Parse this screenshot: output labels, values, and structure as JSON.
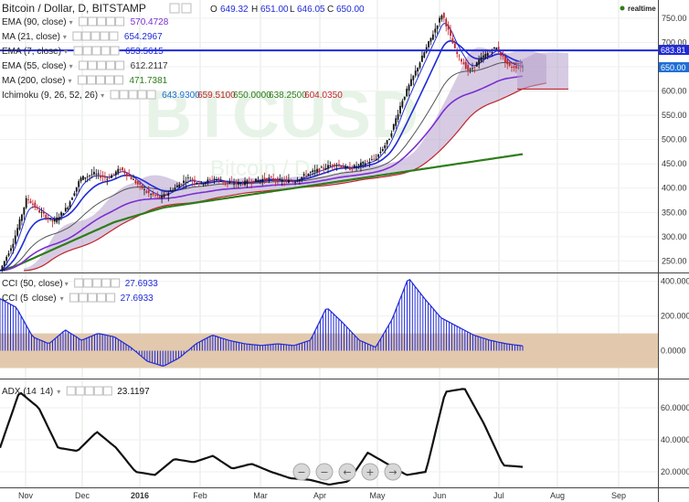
{
  "header": {
    "symbol": "Bitcoin / Dollar, D, BITSTAMP",
    "o_label": "O",
    "o_value": "649.32",
    "h_label": "H",
    "h_value": "651.00",
    "l_label": "L",
    "l_value": "646.05",
    "c_label": "C",
    "c_value": "650.00",
    "realtime": "realtime"
  },
  "watermark": {
    "big": "BTCUSD",
    "small": "Bitcoin / Dollar"
  },
  "indicators": [
    {
      "label": "EMA (90, close)",
      "value": "570.4728",
      "color": "#7b2fd0"
    },
    {
      "label": "MA (21, close)",
      "value": "654.2967",
      "color": "#1f2ad6"
    },
    {
      "label": "EMA (7, close)",
      "value": "653.5615",
      "color": "#1f2ad6"
    },
    {
      "label": "EMA (55, close)",
      "value": "612.2117",
      "color": "#333333"
    },
    {
      "label": "MA (200, close)",
      "value": "471.7381",
      "color": "#2e7d1a"
    },
    {
      "label": "Ichimoku (9, 26, 52, 26)",
      "values": [
        {
          "v": "643.9300",
          "color": "#1f6fd6"
        },
        {
          "v": "659.5100",
          "color": "#c0252b"
        },
        {
          "v": "650.0000",
          "color": "#2e7d1a"
        },
        {
          "v": "638.2500",
          "color": "#2e7d1a"
        },
        {
          "v": "604.0350",
          "color": "#c0252b"
        }
      ]
    }
  ],
  "cci": [
    {
      "label": "CCI (50, close)",
      "value": "27.6933",
      "color": "#1f2ad6"
    },
    {
      "label": "CCI (5",
      "label_tail": "close)",
      "value": "27.6933",
      "color": "#1f2ad6"
    }
  ],
  "adx": {
    "label": "ADX (14",
    "label_tail": "14)",
    "value": "23.1197",
    "color": "#111111"
  },
  "price_axis": {
    "ticks": [
      "750.00",
      "700.00",
      "650.00",
      "600.00",
      "550.00",
      "500.00",
      "450.00",
      "400.00",
      "350.00",
      "300.00",
      "250.00"
    ],
    "min": 230,
    "max": 780
  },
  "price_tags": {
    "hline": "683.81",
    "last": "650.00"
  },
  "cci_axis": {
    "ticks": [
      "400.000",
      "200.000",
      "0.0000"
    ],
    "min": -150,
    "max": 430
  },
  "adx_axis": {
    "ticks": [
      "60.0000",
      "40.0000",
      "20.0000"
    ],
    "min": 12,
    "max": 76
  },
  "time_axis": {
    "labels": [
      "Nov",
      "Dec",
      "2016",
      "Feb",
      "Mar",
      "Apr",
      "May",
      "Jun",
      "Jul",
      "Aug",
      "Sep"
    ]
  },
  "nav_buttons": [
    "−",
    "−",
    "←",
    "+",
    "→"
  ],
  "colors": {
    "up": "#111111",
    "down": "#c0252b",
    "cloud": "#b7a0cc",
    "hline": "#1f2ad6",
    "cci_band": "#e2c9ae"
  },
  "chart_data": {
    "type": "line",
    "x_labels": [
      "Nov",
      "Dec",
      "2016",
      "Feb",
      "Mar",
      "Apr",
      "May",
      "Jun",
      "Jul",
      "Aug",
      "Sep"
    ],
    "price_close": [
      230,
      290,
      380,
      350,
      330,
      360,
      420,
      430,
      420,
      440,
      415,
      390,
      380,
      400,
      420,
      410,
      420,
      410,
      410,
      415,
      420,
      415,
      415,
      430,
      440,
      450,
      440,
      450,
      460,
      500,
      580,
      640,
      700,
      760,
      680,
      640,
      670,
      690,
      650,
      650
    ],
    "ma200": [
      230,
      240,
      255,
      270,
      285,
      300,
      315,
      330,
      340,
      350,
      360,
      365,
      370,
      375,
      380,
      385,
      390,
      395,
      400,
      405,
      410,
      415,
      420,
      425,
      430,
      435,
      440,
      445,
      450,
      455,
      460,
      465,
      470
    ],
    "cci_50": [
      300,
      250,
      80,
      40,
      120,
      60,
      100,
      80,
      20,
      -60,
      -90,
      -40,
      40,
      90,
      60,
      40,
      30,
      40,
      30,
      60,
      250,
      160,
      60,
      20,
      180,
      420,
      300,
      190,
      140,
      90,
      60,
      40,
      27.7
    ],
    "adx_14": [
      35,
      70,
      60,
      35,
      33,
      45,
      35,
      20,
      18,
      28,
      26,
      30,
      22,
      25,
      20,
      16,
      15,
      12,
      14,
      32,
      25,
      18,
      20,
      70,
      72,
      50,
      24,
      23.1
    ],
    "hline": 683.81,
    "last": 650
  }
}
